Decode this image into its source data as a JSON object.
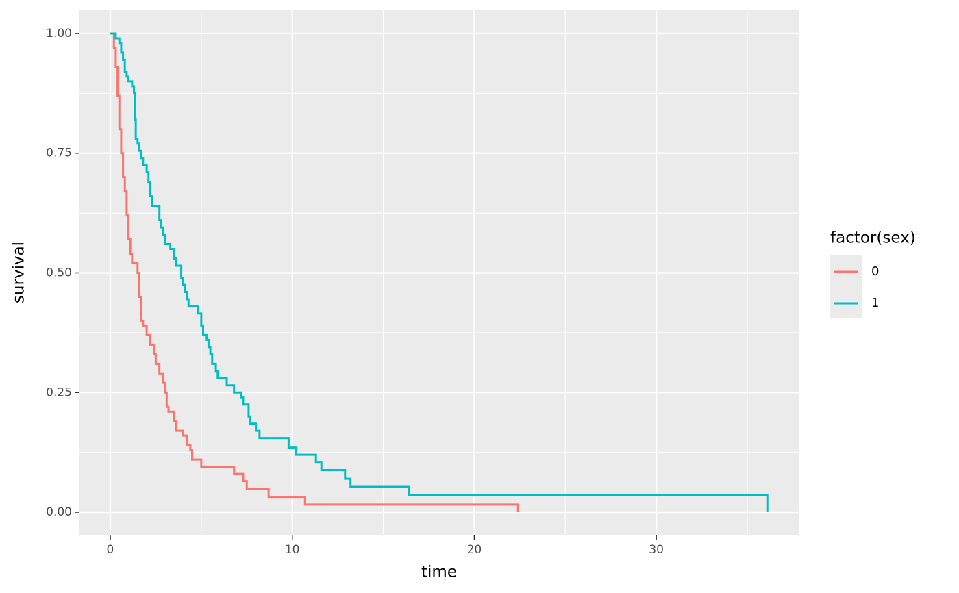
{
  "chart_data": {
    "type": "step",
    "x_label": "time",
    "y_label": "survival",
    "legend_title": "factor(sex)",
    "legend_position": "right",
    "grid": true,
    "xlim": [
      -1.73,
      37.86
    ],
    "ylim": [
      -0.0486,
      1.05
    ],
    "xticks": [
      0,
      10,
      20,
      30
    ],
    "xminor": [
      5,
      15,
      25,
      35
    ],
    "yticks": [
      {
        "value": 0,
        "label": "0.00"
      },
      {
        "value": 0.25,
        "label": "0.25"
      },
      {
        "value": 0.5,
        "label": "0.50"
      },
      {
        "value": 0.75,
        "label": "0.75"
      },
      {
        "value": 1,
        "label": "1.00"
      }
    ],
    "yminor": [
      0.125,
      0.375,
      0.625,
      0.875
    ],
    "series": [
      {
        "name": "0",
        "color": "#F8766D",
        "x": [
          0,
          0.2,
          0.3,
          0.4,
          0.5,
          0.6,
          0.7,
          0.8,
          0.9,
          1.0,
          1.1,
          1.2,
          1.5,
          1.6,
          1.7,
          1.8,
          2.0,
          2.2,
          2.4,
          2.5,
          2.7,
          2.9,
          3.0,
          3.1,
          3.2,
          3.5,
          3.6,
          4.0,
          4.2,
          4.4,
          4.5,
          5.0,
          6.8,
          7.3,
          7.5,
          8.7,
          10.7,
          22.4
        ],
        "values": [
          1.0,
          0.97,
          0.93,
          0.87,
          0.8,
          0.75,
          0.7,
          0.67,
          0.62,
          0.57,
          0.54,
          0.52,
          0.5,
          0.45,
          0.4,
          0.39,
          0.37,
          0.35,
          0.33,
          0.31,
          0.29,
          0.27,
          0.25,
          0.22,
          0.21,
          0.19,
          0.17,
          0.16,
          0.14,
          0.13,
          0.11,
          0.095,
          0.08,
          0.065,
          0.048,
          0.032,
          0.016,
          0.0
        ]
      },
      {
        "name": "1",
        "color": "#00BFC4",
        "x": [
          0,
          0.3,
          0.5,
          0.6,
          0.7,
          0.8,
          0.9,
          1.0,
          1.2,
          1.3,
          1.35,
          1.4,
          1.5,
          1.6,
          1.7,
          1.8,
          2.0,
          2.1,
          2.2,
          2.3,
          2.7,
          2.8,
          2.9,
          3.0,
          3.3,
          3.5,
          3.6,
          3.9,
          4.0,
          4.1,
          4.2,
          4.3,
          4.8,
          5.0,
          5.1,
          5.3,
          5.4,
          5.5,
          5.6,
          5.8,
          5.9,
          6.4,
          6.8,
          7.2,
          7.3,
          7.6,
          7.7,
          8.0,
          8.2,
          9.8,
          10.2,
          11.3,
          11.6,
          12.9,
          13.2,
          16.4,
          36.1
        ],
        "values": [
          1.0,
          0.99,
          0.98,
          0.96,
          0.945,
          0.92,
          0.91,
          0.9,
          0.89,
          0.875,
          0.82,
          0.78,
          0.77,
          0.755,
          0.74,
          0.725,
          0.71,
          0.69,
          0.66,
          0.64,
          0.61,
          0.595,
          0.58,
          0.56,
          0.55,
          0.53,
          0.515,
          0.49,
          0.475,
          0.46,
          0.445,
          0.43,
          0.415,
          0.39,
          0.37,
          0.36,
          0.345,
          0.33,
          0.31,
          0.295,
          0.28,
          0.265,
          0.25,
          0.24,
          0.225,
          0.2,
          0.185,
          0.17,
          0.155,
          0.135,
          0.12,
          0.105,
          0.088,
          0.07,
          0.053,
          0.035,
          0.0
        ]
      }
    ]
  }
}
